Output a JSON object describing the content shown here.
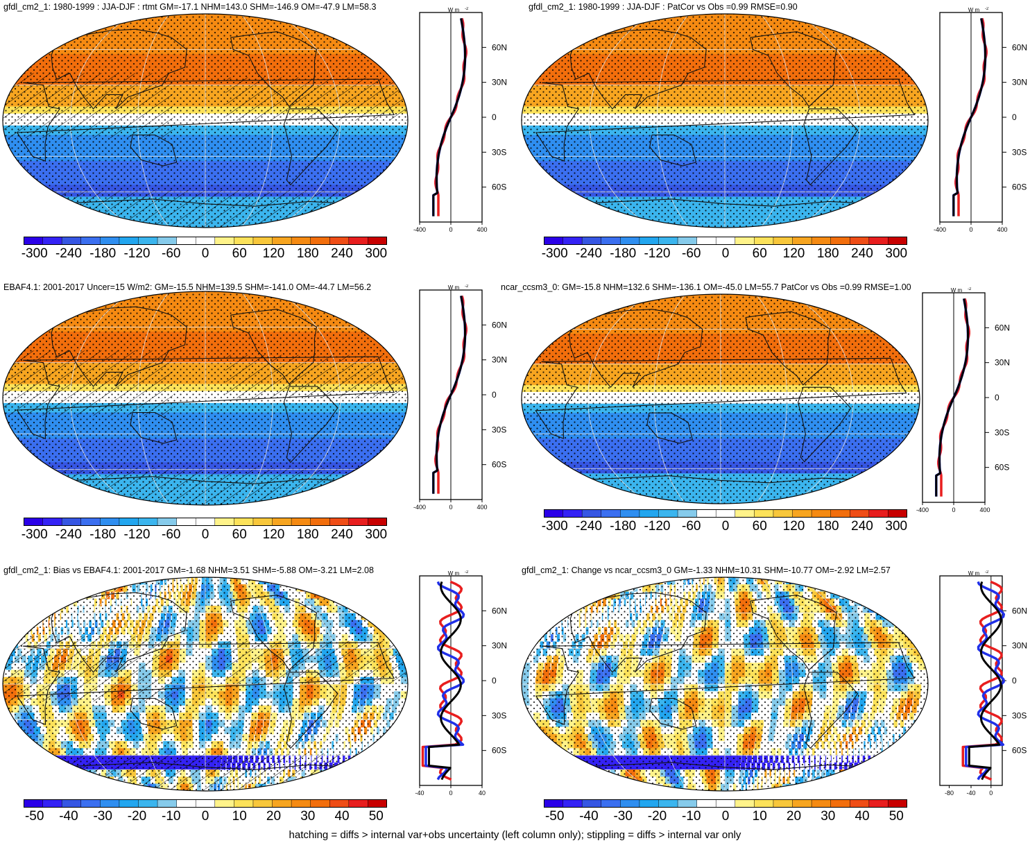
{
  "panels": [
    {
      "title": "gfdl_cm2_1: 1980-1999 : JJA-DJF : rtmt GM=-17.1 NHM=143.0 SHM=-146.9 OM=-47.9 LM=58.3",
      "kind": "mean",
      "hatch": true,
      "colorbar": [
        "-300",
        "-240",
        "-180",
        "-120",
        "-60",
        "0",
        "60",
        "120",
        "180",
        "240",
        "300"
      ],
      "profile_ticks": [
        "-400",
        "0",
        "400"
      ]
    },
    {
      "title": "gfdl_cm2_1: 1980-1999 : JJA-DJF : PatCor vs Obs =0.99 RMSE=0.90",
      "kind": "mean",
      "hatch": false,
      "colorbar": [
        "-300",
        "-240",
        "-180",
        "-120",
        "-60",
        "0",
        "60",
        "120",
        "180",
        "240",
        "300"
      ],
      "profile_ticks": [
        "-400",
        "0",
        "400"
      ]
    },
    {
      "title": "EBAF4.1: 2001-2017 Uncer=15 W/m2: GM=-15.5 NHM=139.5 SHM=-141.0 OM=-44.7 LM=56.2",
      "kind": "mean",
      "hatch": true,
      "colorbar": [
        "-300",
        "-240",
        "-180",
        "-120",
        "-60",
        "0",
        "60",
        "120",
        "180",
        "240",
        "300"
      ],
      "profile_ticks": [
        "-400",
        "0",
        "400"
      ]
    },
    {
      "title": "ncar_ccsm3_0: GM=-15.8 NHM=132.6 SHM=-136.1 OM=-45.0 LM=55.7 PatCor vs Obs =0.99 RMSE=1.00",
      "kind": "mean",
      "hatch": false,
      "colorbar": [
        "-300",
        "-240",
        "-180",
        "-120",
        "-60",
        "0",
        "60",
        "120",
        "180",
        "240",
        "300"
      ],
      "profile_ticks": [
        "-400",
        "0",
        "400"
      ]
    },
    {
      "title": "gfdl_cm2_1: Bias vs EBAF4.1: 2001-2017 GM=-1.68 NHM=3.51 SHM=-5.88 OM=-3.21 LM=2.08",
      "kind": "diff",
      "hatch": true,
      "colorbar": [
        "-50",
        "-40",
        "-30",
        "-20",
        "-10",
        "0",
        "10",
        "20",
        "30",
        "40",
        "50"
      ],
      "profile_ticks": [
        "-40",
        "0",
        "40"
      ]
    },
    {
      "title": "gfdl_cm2_1: Change vs ncar_ccsm3_0 GM=-1.33 NHM=10.31 SHM=-10.77 OM=-2.92 LM=2.57",
      "kind": "diff",
      "hatch": false,
      "colorbar": [
        "-50",
        "-40",
        "-30",
        "-20",
        "-10",
        "0",
        "10",
        "20",
        "30",
        "40",
        "50"
      ],
      "profile_ticks": [
        "-80",
        "-40",
        "0"
      ]
    }
  ],
  "lat_labels": [
    "60N",
    "30N",
    "0",
    "30S",
    "60S"
  ],
  "units_label": "W m",
  "units_exp": "-2",
  "footer": "hatching = diffs > internal var+obs uncertainty (left column only); stippling = diffs > internal var only",
  "palette": [
    "#2a00e8",
    "#3422f5",
    "#3656e3",
    "#3b6ff0",
    "#2f8ef0",
    "#22a6ef",
    "#3bb5ee",
    "#86cbeb",
    "#ffffff",
    "#ffffff",
    "#fff38a",
    "#fce25a",
    "#f8c73b",
    "#f7a520",
    "#f58a12",
    "#f26e0c",
    "#ef4d16",
    "#e81e1e",
    "#c80000"
  ]
}
